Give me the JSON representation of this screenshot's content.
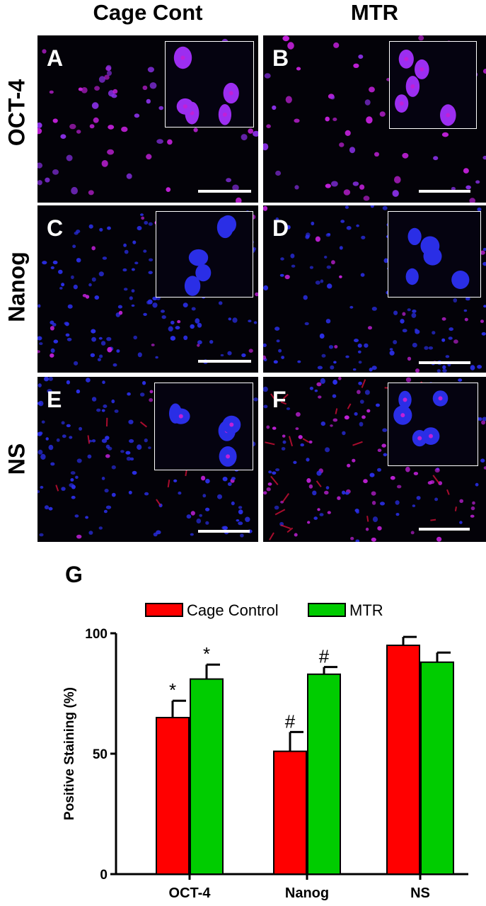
{
  "figure": {
    "column_headers": [
      "Cage Cont",
      "MTR"
    ],
    "row_labels": [
      "OCT-4",
      "Nanog",
      "NS"
    ],
    "panels": [
      {
        "letter": "A",
        "row": 0,
        "col": 0,
        "stain": "oct4"
      },
      {
        "letter": "B",
        "row": 0,
        "col": 1,
        "stain": "oct4"
      },
      {
        "letter": "C",
        "row": 1,
        "col": 0,
        "stain": "nanog"
      },
      {
        "letter": "D",
        "row": 1,
        "col": 1,
        "stain": "nanog"
      },
      {
        "letter": "E",
        "row": 2,
        "col": 0,
        "stain": "ns"
      },
      {
        "letter": "F",
        "row": 2,
        "col": 1,
        "stain": "ns"
      }
    ],
    "colors": {
      "panel_bg": "#030208",
      "nucleus_blue": "#2a2ee6",
      "nucleus_magenta": "#c020d8",
      "stain_red": "#e0103a"
    }
  },
  "chart_data": {
    "type": "bar",
    "panel_label": "G",
    "categories": [
      "OCT-4",
      "Nanog",
      "NS"
    ],
    "series": [
      {
        "name": "Cage Control",
        "color": "#ff0000",
        "values": [
          65,
          51,
          95
        ],
        "errors": [
          7,
          8,
          3.5
        ]
      },
      {
        "name": "MTR",
        "color": "#00cc00",
        "values": [
          81,
          83,
          88
        ],
        "errors": [
          6,
          3,
          4
        ]
      }
    ],
    "annotations": [
      [
        "*",
        "*"
      ],
      [
        "#",
        "#"
      ],
      [
        "",
        ""
      ]
    ],
    "ylabel": "Positive Staining (%)",
    "xlabel": "",
    "ylim": [
      0,
      100
    ],
    "yticks": [
      0,
      50,
      100
    ],
    "legend_position": "top"
  }
}
